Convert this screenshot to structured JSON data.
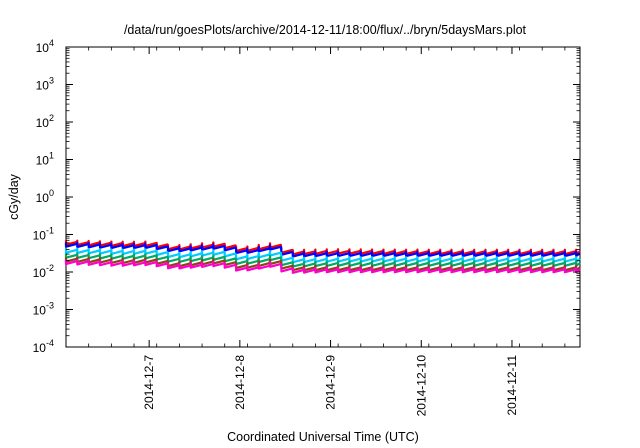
{
  "chart_data": {
    "type": "line",
    "title": "/data/run/goesPlots/archive/2014-12-11/18:00/flux/../bryn/5daysMars.plot",
    "xlabel": "Coordinated Universal Time (UTC)",
    "ylabel": "cGy/day",
    "yscale": "log",
    "ylim": [
      0.0001,
      10000
    ],
    "xlim": [
      "2014-12-06T02:00",
      "2014-12-11T18:00"
    ],
    "grid": false,
    "legend": "none",
    "y_ticks": [
      {
        "base": "10",
        "exp": "-4"
      },
      {
        "base": "10",
        "exp": "-3"
      },
      {
        "base": "10",
        "exp": "-2"
      },
      {
        "base": "10",
        "exp": "-1"
      },
      {
        "base": "10",
        "exp": "0"
      },
      {
        "base": "10",
        "exp": "1"
      },
      {
        "base": "10",
        "exp": "2"
      },
      {
        "base": "10",
        "exp": "3"
      },
      {
        "base": "10",
        "exp": "4"
      }
    ],
    "x_ticks": [
      {
        "label": "2014-12-7",
        "value": "2014-12-07T00:00"
      },
      {
        "label": "2014-12-8",
        "value": "2014-12-08T00:00"
      },
      {
        "label": "2014-12-9",
        "value": "2014-12-09T00:00"
      },
      {
        "label": "2014-12-10",
        "value": "2014-12-10T00:00"
      },
      {
        "label": "2014-12-11",
        "value": "2014-12-11T00:00"
      }
    ],
    "series": [
      {
        "color": "#ff0000",
        "values": [
          [
            "2014-12-06T02:00",
            0.062
          ],
          [
            "2014-12-06T16:00",
            0.057
          ],
          [
            "2014-12-07T00:00",
            0.058
          ],
          [
            "2014-12-07T06:00",
            0.045
          ],
          [
            "2014-12-07T18:00",
            0.056
          ],
          [
            "2014-12-08T00:00",
            0.04
          ],
          [
            "2014-12-08T08:00",
            0.052
          ],
          [
            "2014-12-08T12:00",
            0.034
          ],
          [
            "2014-12-09T00:00",
            0.036
          ],
          [
            "2014-12-10T00:00",
            0.035
          ],
          [
            "2014-12-11T00:00",
            0.035
          ],
          [
            "2014-12-11T18:00",
            0.035
          ]
        ]
      },
      {
        "color": "#0000ff",
        "values": [
          [
            "2014-12-06T02:00",
            0.055
          ],
          [
            "2014-12-06T16:00",
            0.05
          ],
          [
            "2014-12-07T00:00",
            0.051
          ],
          [
            "2014-12-07T06:00",
            0.04
          ],
          [
            "2014-12-07T18:00",
            0.049
          ],
          [
            "2014-12-08T00:00",
            0.035
          ],
          [
            "2014-12-08T08:00",
            0.046
          ],
          [
            "2014-12-08T12:00",
            0.03
          ],
          [
            "2014-12-09T00:00",
            0.031
          ],
          [
            "2014-12-10T00:00",
            0.031
          ],
          [
            "2014-12-11T00:00",
            0.031
          ],
          [
            "2014-12-11T18:00",
            0.031
          ]
        ]
      },
      {
        "color": "#00ccff",
        "values": [
          [
            "2014-12-06T02:00",
            0.038
          ],
          [
            "2014-12-06T16:00",
            0.035
          ],
          [
            "2014-12-07T00:00",
            0.036
          ],
          [
            "2014-12-07T06:00",
            0.028
          ],
          [
            "2014-12-07T18:00",
            0.034
          ],
          [
            "2014-12-08T00:00",
            0.024
          ],
          [
            "2014-12-08T08:00",
            0.032
          ],
          [
            "2014-12-08T12:00",
            0.021
          ],
          [
            "2014-12-09T00:00",
            0.022
          ],
          [
            "2014-12-10T00:00",
            0.022
          ],
          [
            "2014-12-11T00:00",
            0.022
          ],
          [
            "2014-12-11T18:00",
            0.022
          ]
        ]
      },
      {
        "color": "#00aa66",
        "values": [
          [
            "2014-12-06T02:00",
            0.028
          ],
          [
            "2014-12-06T16:00",
            0.026
          ],
          [
            "2014-12-07T00:00",
            0.027
          ],
          [
            "2014-12-07T06:00",
            0.021
          ],
          [
            "2014-12-07T18:00",
            0.025
          ],
          [
            "2014-12-08T00:00",
            0.018
          ],
          [
            "2014-12-08T08:00",
            0.024
          ],
          [
            "2014-12-08T12:00",
            0.016
          ],
          [
            "2014-12-09T00:00",
            0.017
          ],
          [
            "2014-12-10T00:00",
            0.017
          ],
          [
            "2014-12-11T00:00",
            0.017
          ],
          [
            "2014-12-11T18:00",
            0.017
          ]
        ]
      },
      {
        "color": "#8b4513",
        "values": [
          [
            "2014-12-06T02:00",
            0.022
          ],
          [
            "2014-12-06T16:00",
            0.02
          ],
          [
            "2014-12-07T00:00",
            0.021
          ],
          [
            "2014-12-07T06:00",
            0.016
          ],
          [
            "2014-12-07T18:00",
            0.02
          ],
          [
            "2014-12-08T00:00",
            0.014
          ],
          [
            "2014-12-08T08:00",
            0.019
          ],
          [
            "2014-12-08T12:00",
            0.013
          ],
          [
            "2014-12-09T00:00",
            0.013
          ],
          [
            "2014-12-10T00:00",
            0.013
          ],
          [
            "2014-12-11T00:00",
            0.013
          ],
          [
            "2014-12-11T18:00",
            0.013
          ]
        ]
      },
      {
        "color": "#ff00cc",
        "values": [
          [
            "2014-12-06T02:00",
            0.019
          ],
          [
            "2014-12-06T16:00",
            0.017
          ],
          [
            "2014-12-07T00:00",
            0.018
          ],
          [
            "2014-12-07T06:00",
            0.014
          ],
          [
            "2014-12-07T18:00",
            0.017
          ],
          [
            "2014-12-08T00:00",
            0.012
          ],
          [
            "2014-12-08T08:00",
            0.016
          ],
          [
            "2014-12-08T12:00",
            0.011
          ],
          [
            "2014-12-09T00:00",
            0.0115
          ],
          [
            "2014-12-10T00:00",
            0.0115
          ],
          [
            "2014-12-11T00:00",
            0.0115
          ],
          [
            "2014-12-11T18:00",
            0.0115
          ]
        ]
      }
    ]
  }
}
